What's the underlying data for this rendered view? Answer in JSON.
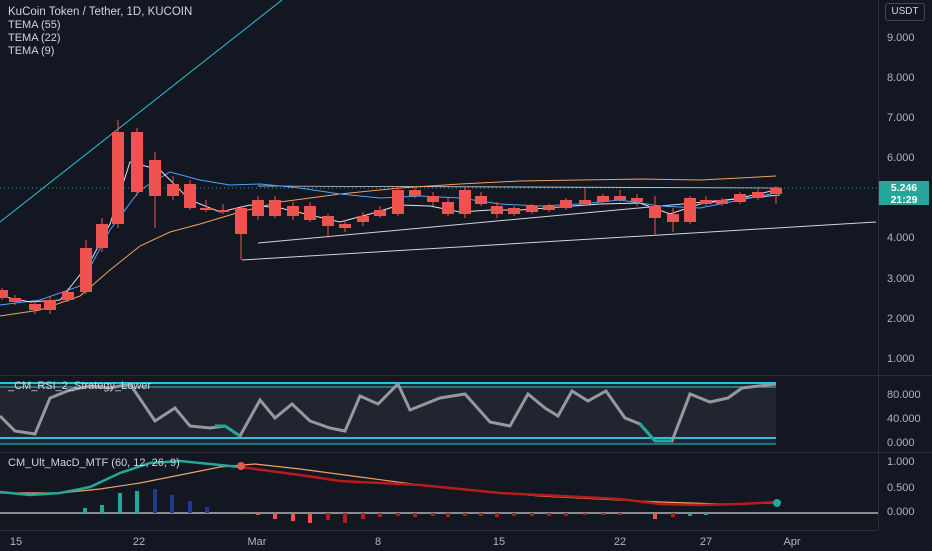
{
  "symbol": {
    "title": "KuCoin Token / Tether, 1D, KUCOIN",
    "indicators": [
      "TEMA (55)",
      "TEMA (22)",
      "TEMA (9)"
    ],
    "currency": "USDT"
  },
  "price_axis": {
    "ticks": [
      "9.000",
      "8.000",
      "7.000",
      "6.000",
      "4.000",
      "3.000",
      "2.000",
      "1.000"
    ],
    "last_price": "5.246",
    "countdown": "21:29"
  },
  "rsi_panel": {
    "title": "_CM_RSI_2_Strategy_Lower",
    "ticks": [
      "80.000",
      "40.000",
      "0.000"
    ]
  },
  "macd_panel": {
    "title": "CM_Ult_MacD_MTF (60, 12, 26, 9)",
    "ticks": [
      "1.000",
      "0.500",
      "0.000"
    ]
  },
  "time_axis": {
    "labels": [
      "15",
      "22",
      "Mar",
      "8",
      "15",
      "22",
      "27",
      "Apr"
    ]
  },
  "colors": {
    "up": "#26a69a",
    "down": "#ef5350",
    "background": "#131722"
  }
}
